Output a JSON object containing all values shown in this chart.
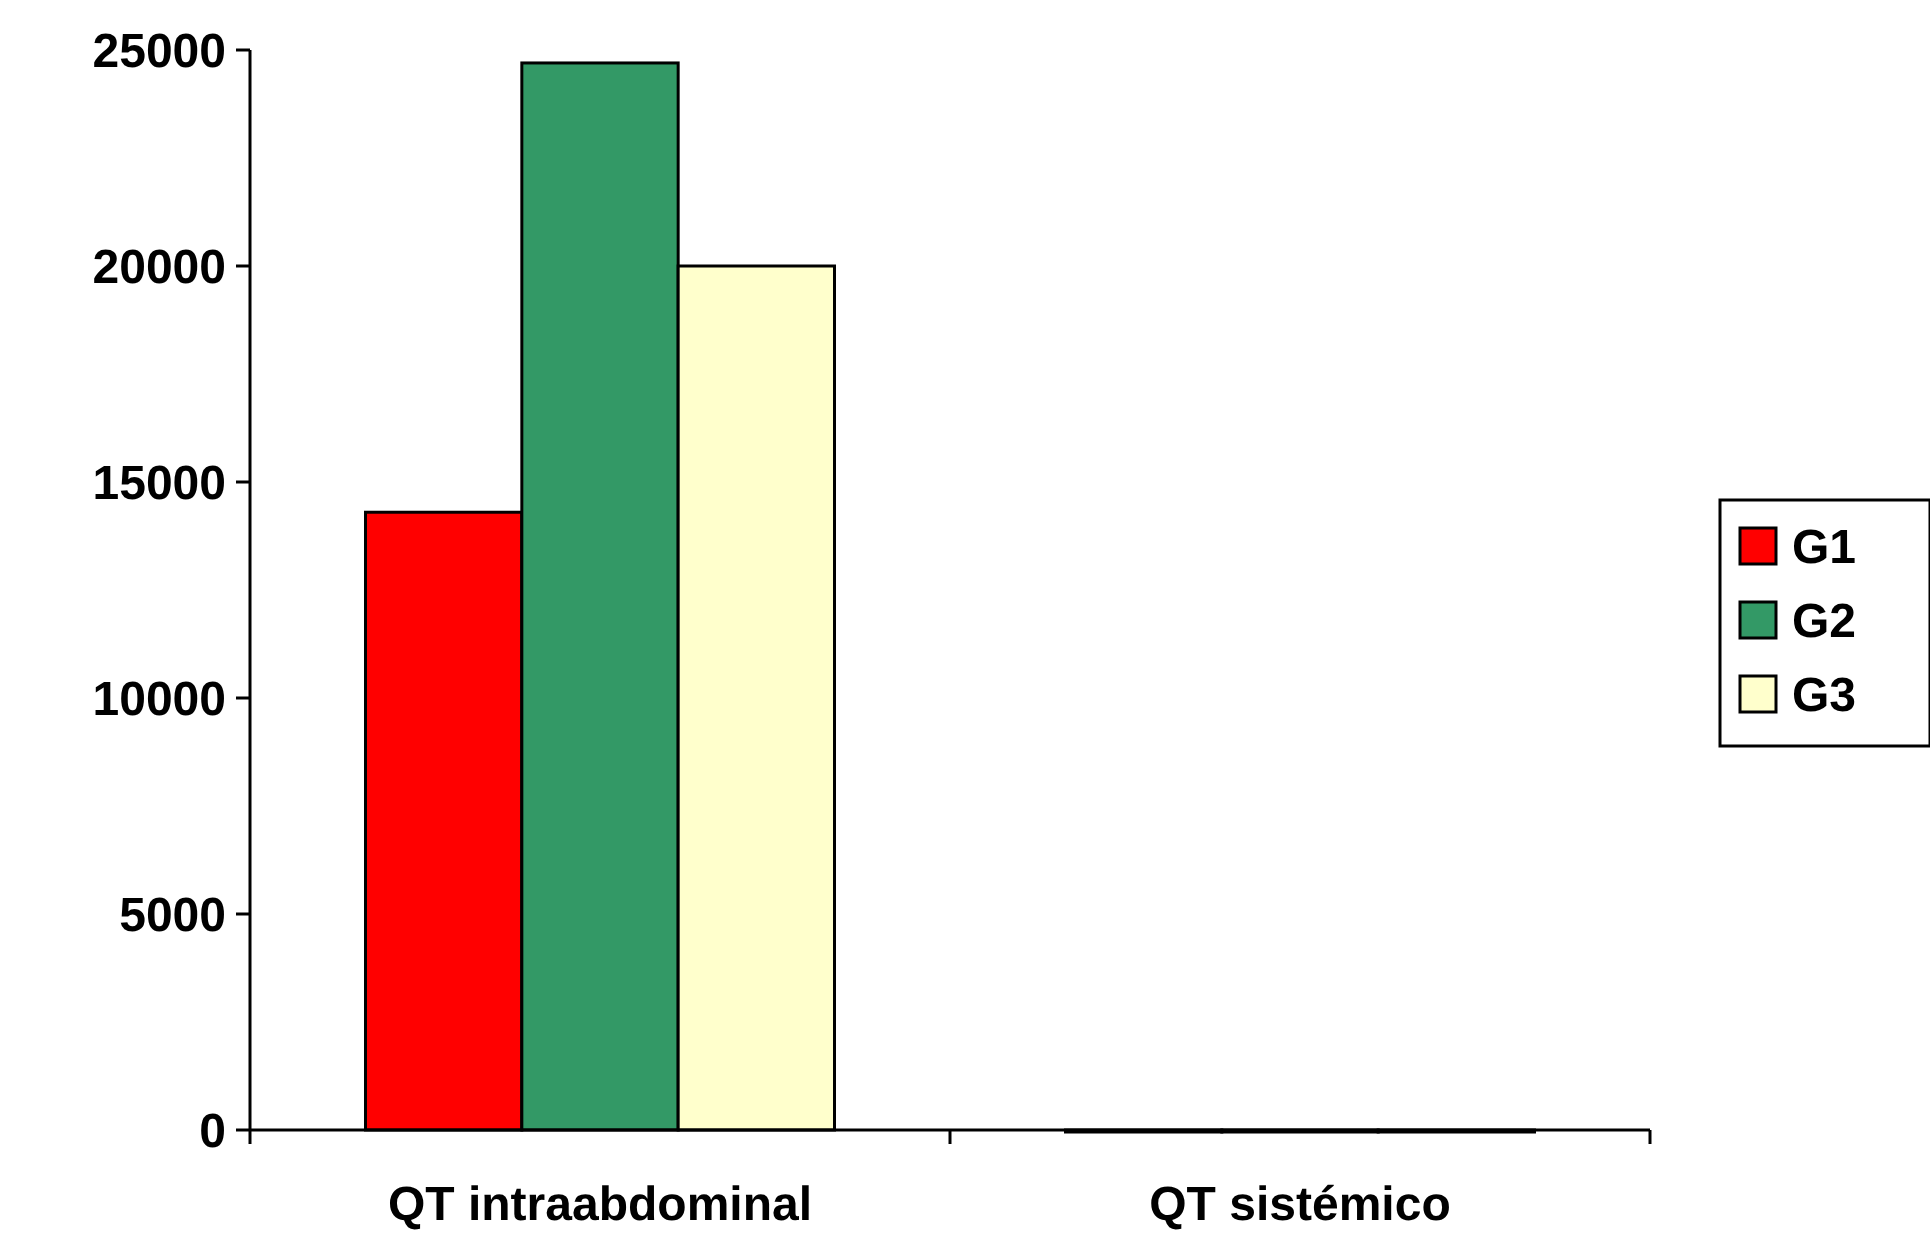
{
  "chart_data": {
    "type": "bar",
    "categories": [
      "QT intraabdominal",
      "QT sistémico"
    ],
    "series": [
      {
        "name": "G1",
        "color": "#ff0000",
        "values": [
          14300,
          0
        ]
      },
      {
        "name": "G2",
        "color": "#339966",
        "values": [
          24700,
          0
        ]
      },
      {
        "name": "G3",
        "color": "#ffffcc",
        "values": [
          20000,
          0
        ]
      }
    ],
    "ylim": [
      0,
      25000
    ],
    "yticks": [
      0,
      5000,
      10000,
      15000,
      20000,
      25000
    ],
    "grid": false,
    "legend": "right"
  }
}
